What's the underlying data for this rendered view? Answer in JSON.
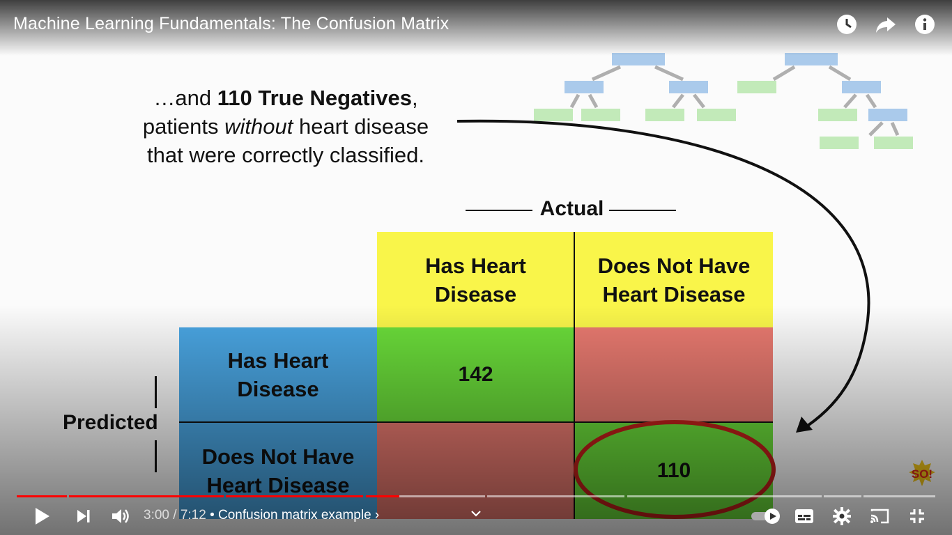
{
  "video": {
    "title": "Machine Learning Fundamentals: The Confusion Matrix"
  },
  "top_icons": [
    "watch-later-icon",
    "share-icon",
    "info-icon"
  ],
  "slide": {
    "narration": {
      "prefix": "…and ",
      "bold": "110 True Negatives",
      "comma": ",",
      "line2_a": "patients ",
      "line2_em": "without",
      "line2_b": " heart disease",
      "line3": "that were correctly classified."
    },
    "actual_label": "Actual",
    "predicted_label": "Predicted",
    "col_headers": [
      "Has Heart Disease",
      "Does Not Have Heart Disease"
    ],
    "row_headers": [
      "Has Heart Disease",
      "Does Not Have Heart Disease"
    ],
    "cells": {
      "tp": "142",
      "fp": "",
      "fn": "",
      "tn": "110"
    },
    "colors": {
      "header_yellow": "#f9f54a",
      "row_blue": "#4aa6e3",
      "correct_green": "#6bdd3a",
      "wrong_red": "#e97a70",
      "highlight_ring": "#c0201a"
    }
  },
  "player": {
    "time": "3:00 / 7:12",
    "chapter": " • Confusion matrix example ›",
    "progress_fraction": 0.4167,
    "played_color": "#ff0000"
  }
}
